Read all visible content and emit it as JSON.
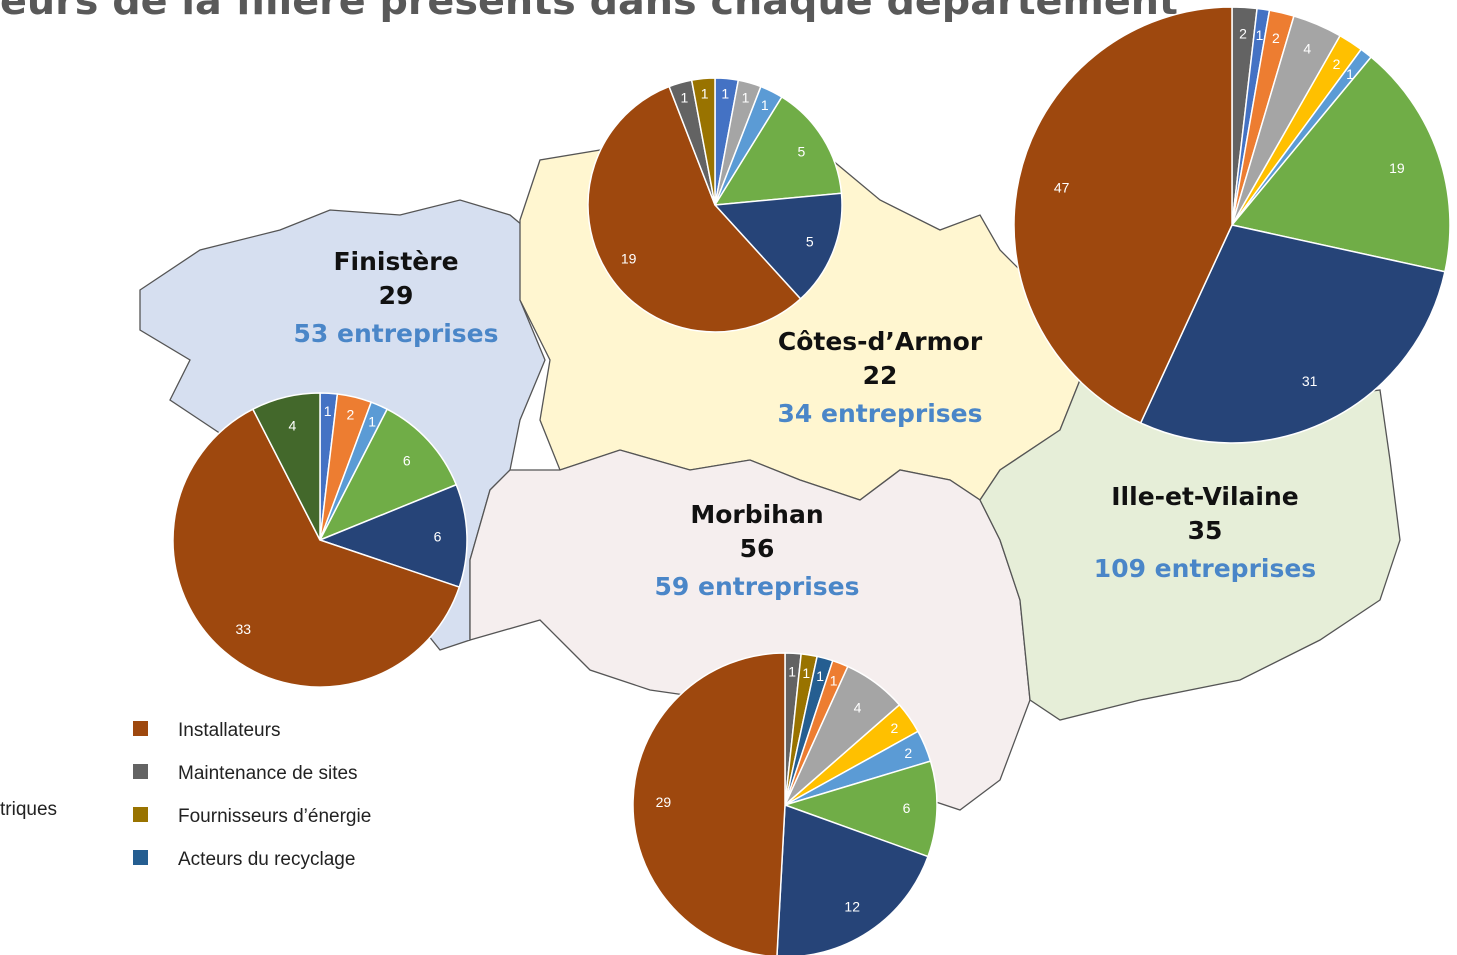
{
  "title": "eurs de la filière présents dans chaque département",
  "regions": [
    {
      "name": "Finistère",
      "code": "29",
      "companies": "53 entreprises",
      "pie": {
        "values": [
          1,
          2,
          1,
          6,
          6,
          33,
          4
        ],
        "colors": [
          "#4472c4",
          "#ed7d31",
          "#5b9bd5",
          "#70ad47",
          "#264478",
          "#9e480e",
          "#43682b"
        ]
      }
    },
    {
      "name": "Côtes-d’Armor",
      "code": "22",
      "companies": "34 entreprises",
      "pie": {
        "values": [
          1,
          1,
          1,
          5,
          5,
          19,
          1,
          1
        ],
        "colors": [
          "#4472c4",
          "#a5a5a5",
          "#5b9bd5",
          "#70ad47",
          "#264478",
          "#9e480e",
          "#636363",
          "#997300"
        ]
      }
    },
    {
      "name": "Morbihan",
      "code": "56",
      "companies": "59 entreprises",
      "pie": {
        "values": [
          1,
          1,
          1,
          1,
          4,
          2,
          2,
          6,
          12,
          29
        ],
        "colors": [
          "#636363",
          "#997300",
          "#255e91",
          "#ed7d31",
          "#a5a5a5",
          "#ffc000",
          "#5b9bd5",
          "#70ad47",
          "#264478",
          "#9e480e"
        ]
      }
    },
    {
      "name": "Ille-et-Vilaine",
      "code": "35",
      "companies": "109 entreprises",
      "pie": {
        "values": [
          2,
          1,
          2,
          4,
          2,
          1,
          19,
          31,
          47
        ],
        "colors": [
          "#636363",
          "#4472c4",
          "#ed7d31",
          "#a5a5a5",
          "#ffc000",
          "#5b9bd5",
          "#70ad47",
          "#264478",
          "#9e480e"
        ]
      }
    }
  ],
  "legend": {
    "fragment": "triques",
    "items": [
      {
        "label": "Installateurs",
        "color": "#9e480e"
      },
      {
        "label": "Maintenance de sites",
        "color": "#636363"
      },
      {
        "label": "Fournisseurs d’énergie",
        "color": "#997300"
      },
      {
        "label": "Acteurs du recyclage",
        "color": "#255e91"
      }
    ]
  }
}
